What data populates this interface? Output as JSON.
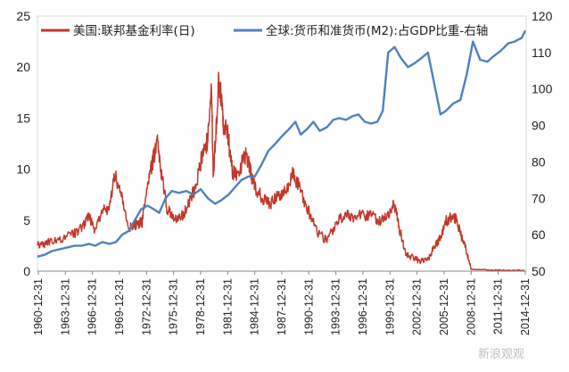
{
  "chart_data": {
    "type": "line",
    "title": "",
    "legend_position": "top",
    "y_left": {
      "range": [
        0,
        25
      ],
      "ticks": [
        "0",
        "5",
        "10",
        "15",
        "20",
        "25"
      ]
    },
    "y_right": {
      "range": [
        50,
        120
      ],
      "ticks": [
        "50",
        "60",
        "70",
        "80",
        "90",
        "100",
        "110",
        "120"
      ]
    },
    "x_ticks": [
      "1960-12-31",
      "1963-12-31",
      "1966-12-31",
      "1969-12-31",
      "1972-12-31",
      "1975-12-31",
      "1978-12-31",
      "1981-12-31",
      "1984-12-31",
      "1987-12-31",
      "1990-12-31",
      "1993-12-31",
      "1996-12-31",
      "1999-12-31",
      "2002-12-31",
      "2005-12-31",
      "2008-12-31",
      "2011-12-31",
      "2014-12-31"
    ],
    "x_range": [
      1960.9,
      2015.1
    ],
    "series": [
      {
        "name": "美国:联邦基金利率(日)",
        "axis": "left",
        "color": "#c0392b",
        "x": [
          1960.9,
          1962,
          1963.5,
          1964.8,
          1965.8,
          1966.6,
          1967.2,
          1968,
          1968.8,
          1969.5,
          1970.2,
          1971,
          1971.8,
          1972.5,
          1973.1,
          1973.6,
          1974.2,
          1974.7,
          1975.3,
          1976,
          1977,
          1977.8,
          1978.5,
          1979.2,
          1979.8,
          1980.2,
          1980.4,
          1980.7,
          1981,
          1981.3,
          1981.6,
          1982,
          1982.5,
          1983,
          1984,
          1984.5,
          1985,
          1986,
          1986.8,
          1987.5,
          1988.3,
          1989.2,
          1990,
          1991,
          1992,
          1993,
          1994,
          1995,
          1996,
          1997,
          1998,
          1998.9,
          1999.5,
          2000.5,
          2001,
          2001.7,
          2002.5,
          2003.5,
          2004.3,
          2004.8,
          2005.5,
          2006.2,
          2006.8,
          2007.3,
          2007.9,
          2008.5,
          2009,
          2011,
          2013,
          2014.9
        ],
        "values": [
          2.5,
          2.8,
          3.2,
          3.6,
          4.2,
          5.4,
          4.1,
          5.8,
          6.2,
          9.3,
          7.5,
          4.2,
          4.6,
          4.8,
          8.2,
          10.5,
          12.4,
          9.2,
          6.0,
          5.2,
          5.5,
          6.8,
          8.5,
          11.3,
          13.0,
          17.8,
          9.5,
          13.5,
          19.0,
          16.5,
          14.0,
          13.5,
          9.8,
          9.5,
          11.3,
          10.0,
          8.2,
          6.9,
          6.6,
          7.2,
          7.8,
          9.5,
          8.1,
          5.8,
          3.7,
          3.0,
          4.6,
          5.7,
          5.3,
          5.5,
          5.4,
          4.8,
          5.3,
          6.5,
          4.3,
          1.8,
          1.3,
          1.0,
          1.3,
          2.2,
          3.2,
          4.9,
          5.3,
          5.2,
          3.5,
          1.9,
          0.2,
          0.1,
          0.1,
          0.1
        ]
      },
      {
        "name": "全球:货币和准货币(M2):占GDP比重-右轴",
        "axis": "right",
        "color": "#4f81bd",
        "x": [
          1960.9,
          1961.7,
          1962.5,
          1963.3,
          1964.2,
          1965,
          1965.8,
          1966.6,
          1967.3,
          1968.1,
          1968.9,
          1969.6,
          1970.3,
          1971,
          1971.7,
          1972.4,
          1973.1,
          1973.8,
          1974.4,
          1975.1,
          1975.8,
          1976.6,
          1977.4,
          1978.2,
          1979,
          1979.8,
          1980.6,
          1981.3,
          1982.1,
          1982.8,
          1983.5,
          1984.3,
          1985,
          1985.8,
          1986.5,
          1987.3,
          1988,
          1988.8,
          1989.5,
          1990.1,
          1990.8,
          1991.5,
          1992.2,
          1993,
          1993.7,
          1994.4,
          1995.1,
          1995.8,
          1996.5,
          1997.2,
          1997.9,
          1998.6,
          1999.2,
          1999.8,
          2000.5,
          2001.2,
          2002,
          2002.7,
          2003.5,
          2004.2,
          2004.9,
          2005.6,
          2006.2,
          2007,
          2007.8,
          2008.5,
          2009.2,
          2010,
          2010.8,
          2011.5,
          2012.3,
          2013.1,
          2013.8,
          2014.6,
          2015.0
        ],
        "values": [
          54,
          54.5,
          55.5,
          56,
          56.5,
          57,
          57,
          57.5,
          57,
          58,
          57.5,
          58,
          60,
          61,
          64,
          67,
          68,
          67,
          66,
          70,
          72,
          71.5,
          72,
          71,
          72.5,
          70,
          68.5,
          69.5,
          71,
          73,
          75,
          76,
          76,
          79.5,
          83,
          85,
          87,
          89,
          91,
          87.5,
          89,
          91,
          88.5,
          89.5,
          91.5,
          92,
          91.5,
          92.5,
          93,
          91,
          90.5,
          91,
          94,
          110,
          111.5,
          108.5,
          106,
          107,
          108.5,
          110,
          101.5,
          93,
          94,
          96,
          97,
          104,
          113,
          108,
          107.5,
          109,
          110.5,
          112.5,
          113,
          114,
          116
        ]
      }
    ]
  },
  "watermark": "新浪观观"
}
